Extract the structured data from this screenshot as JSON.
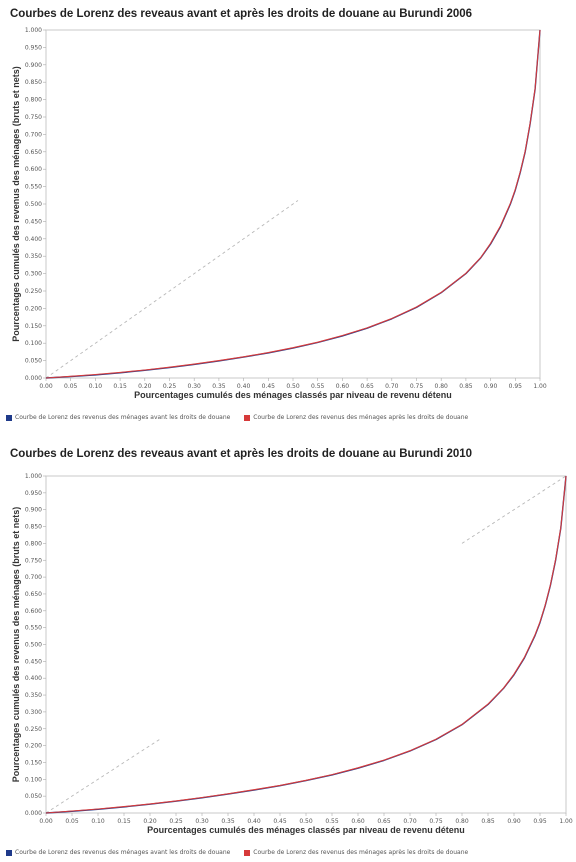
{
  "chart_data": [
    {
      "type": "line",
      "title": "Courbes de Lorenz des reveaus avant et après les droits de douane au Burundi 2006",
      "xlabel": "Pourcentages cumulés des ménages classés par niveau de revenu détenu",
      "ylabel": "Pourcentages cumulés des revenus des ménages (bruts et nets)",
      "xlim": [
        0,
        1
      ],
      "ylim": [
        0,
        1
      ],
      "x_ticks": [
        "0.00",
        "0.05",
        "0.10",
        "0.15",
        "0.20",
        "0.25",
        "0.30",
        "0.35",
        "0.40",
        "0.45",
        "0.50",
        "0.55",
        "0.60",
        "0.65",
        "0.70",
        "0.75",
        "0.80",
        "0.85",
        "0.90",
        "0.95",
        "1.00"
      ],
      "y_ticks": [
        "0.000",
        "0.050",
        "0.100",
        "0.150",
        "0.200",
        "0.250",
        "0.300",
        "0.350",
        "0.400",
        "0.450",
        "0.500",
        "0.550",
        "0.600",
        "0.650",
        "0.700",
        "0.750",
        "0.800",
        "0.850",
        "0.900",
        "0.950",
        "1.000"
      ],
      "equality_line": {
        "x": [
          0.0,
          0.51
        ],
        "y": [
          0.0,
          0.51
        ]
      },
      "legend_position": "bottom",
      "series": [
        {
          "name": "Courbe de Lorenz des revenus des ménages avant les droits de douane",
          "color": "#1f3a8a",
          "x": [
            0,
            0.05,
            0.1,
            0.15,
            0.2,
            0.25,
            0.3,
            0.35,
            0.4,
            0.45,
            0.5,
            0.55,
            0.6,
            0.65,
            0.7,
            0.75,
            0.8,
            0.85,
            0.88,
            0.9,
            0.92,
            0.94,
            0.95,
            0.96,
            0.97,
            0.98,
            0.99,
            1.0
          ],
          "y": [
            0,
            0.004,
            0.009,
            0.015,
            0.022,
            0.03,
            0.039,
            0.049,
            0.06,
            0.072,
            0.086,
            0.102,
            0.121,
            0.143,
            0.17,
            0.203,
            0.245,
            0.3,
            0.345,
            0.385,
            0.435,
            0.5,
            0.54,
            0.59,
            0.65,
            0.73,
            0.83,
            1.0
          ]
        },
        {
          "name": "Courbe de Lorenz des revenus des ménages après les droits de douane",
          "color": "#d63a3a",
          "x": [
            0,
            0.05,
            0.1,
            0.15,
            0.2,
            0.25,
            0.3,
            0.35,
            0.4,
            0.45,
            0.5,
            0.55,
            0.6,
            0.65,
            0.7,
            0.75,
            0.8,
            0.85,
            0.88,
            0.9,
            0.92,
            0.94,
            0.95,
            0.96,
            0.97,
            0.98,
            0.99,
            1.0
          ],
          "y": [
            0,
            0.005,
            0.01,
            0.016,
            0.023,
            0.031,
            0.04,
            0.05,
            0.061,
            0.073,
            0.087,
            0.103,
            0.122,
            0.144,
            0.171,
            0.204,
            0.246,
            0.301,
            0.346,
            0.387,
            0.437,
            0.502,
            0.542,
            0.592,
            0.652,
            0.732,
            0.832,
            1.0
          ]
        }
      ]
    },
    {
      "type": "line",
      "title": "Courbes de Lorenz des reveaus avant et après les droits de douane au Burundi 2010",
      "xlabel": "Pourcentages cumulés des ménages classés par niveau de revenu détenu",
      "ylabel": "Pourcentages cumulés des revenus des ménages (bruts et nets)",
      "xlim": [
        0,
        1
      ],
      "ylim": [
        0,
        1
      ],
      "x_ticks": [
        "0.00",
        "0.05",
        "0.10",
        "0.15",
        "0.20",
        "0.25",
        "0.30",
        "0.35",
        "0.40",
        "0.45",
        "0.50",
        "0.55",
        "0.60",
        "0.65",
        "0.70",
        "0.75",
        "0.80",
        "0.85",
        "0.90",
        "0.95",
        "1.00"
      ],
      "y_ticks": [
        "0.000",
        "0.050",
        "0.100",
        "0.150",
        "0.200",
        "0.250",
        "0.300",
        "0.350",
        "0.400",
        "0.450",
        "0.500",
        "0.550",
        "0.600",
        "0.650",
        "0.700",
        "0.750",
        "0.800",
        "0.850",
        "0.900",
        "0.950",
        "1.000"
      ],
      "equality_lines": [
        {
          "x": [
            0.0,
            0.22
          ],
          "y": [
            0.0,
            0.22
          ]
        },
        {
          "x": [
            0.8,
            1.0
          ],
          "y": [
            0.8,
            1.0
          ]
        }
      ],
      "legend_position": "bottom",
      "series": [
        {
          "name": "Courbe de Lorenz des revenus des ménages avant les droits de douane",
          "color": "#1f3a8a",
          "x": [
            0,
            0.05,
            0.1,
            0.15,
            0.2,
            0.25,
            0.3,
            0.35,
            0.4,
            0.45,
            0.5,
            0.55,
            0.6,
            0.65,
            0.7,
            0.75,
            0.8,
            0.85,
            0.88,
            0.9,
            0.92,
            0.94,
            0.95,
            0.96,
            0.97,
            0.98,
            0.99,
            1.0
          ],
          "y": [
            0,
            0.005,
            0.011,
            0.018,
            0.026,
            0.035,
            0.045,
            0.056,
            0.068,
            0.081,
            0.096,
            0.113,
            0.133,
            0.156,
            0.184,
            0.218,
            0.262,
            0.322,
            0.37,
            0.41,
            0.46,
            0.525,
            0.565,
            0.615,
            0.675,
            0.75,
            0.845,
            1.0
          ]
        },
        {
          "name": "Courbe de Lorenz des revenus des ménages après les droits de douane",
          "color": "#d63a3a",
          "x": [
            0,
            0.05,
            0.1,
            0.15,
            0.2,
            0.25,
            0.3,
            0.35,
            0.4,
            0.45,
            0.5,
            0.55,
            0.6,
            0.65,
            0.7,
            0.75,
            0.8,
            0.85,
            0.88,
            0.9,
            0.92,
            0.94,
            0.95,
            0.96,
            0.97,
            0.98,
            0.99,
            1.0
          ],
          "y": [
            0,
            0.006,
            0.012,
            0.019,
            0.027,
            0.036,
            0.046,
            0.057,
            0.069,
            0.082,
            0.097,
            0.114,
            0.134,
            0.157,
            0.185,
            0.219,
            0.263,
            0.323,
            0.371,
            0.412,
            0.462,
            0.527,
            0.567,
            0.617,
            0.677,
            0.752,
            0.847,
            1.0
          ]
        }
      ]
    }
  ]
}
